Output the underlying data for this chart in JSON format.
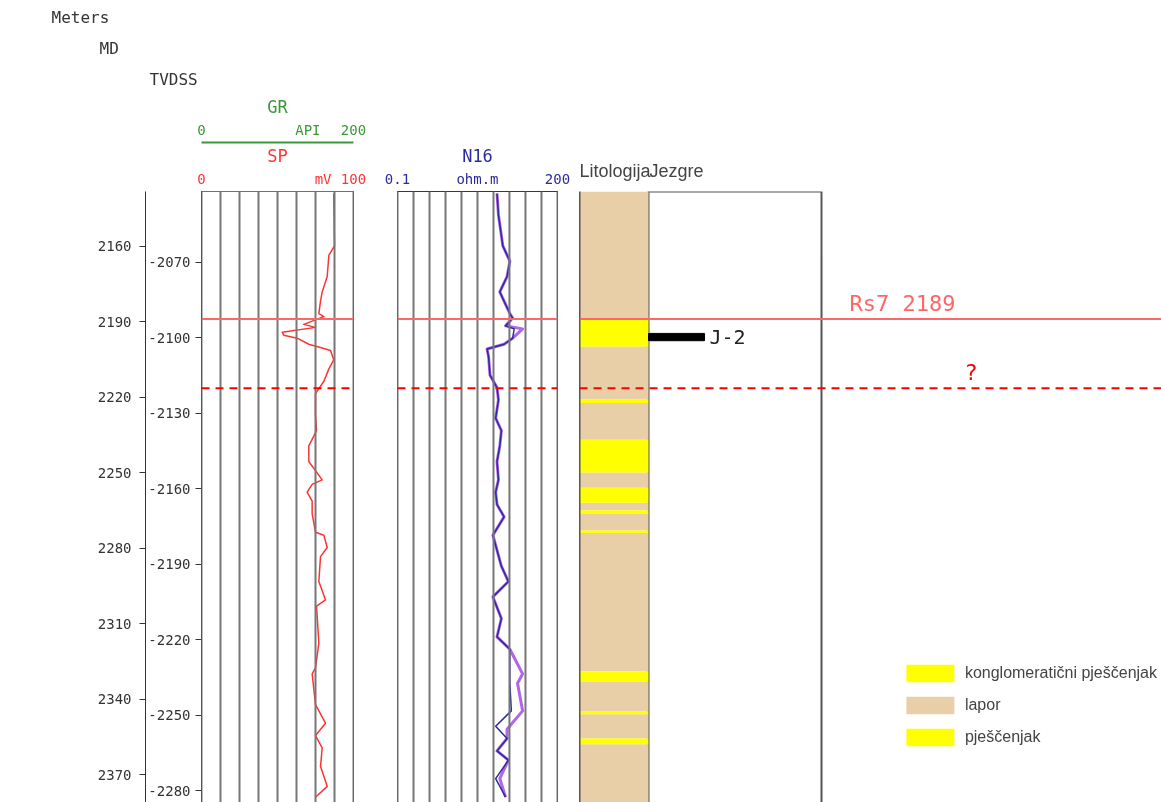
{
  "chart_data": [
    {
      "type": "line",
      "orientation": "horizontal",
      "xlabel": "SP",
      "xlim": [
        0,
        100
      ],
      "xticks": [
        0,
        {
          "value": 12.5,
          "label": null
        },
        {
          "value": 25,
          "label": null
        },
        {
          "value": 37.5,
          "label": null
        },
        {
          "value": 50,
          "label": null
        },
        {
          "value": 62.5,
          "label": null
        },
        {
          "value": 75,
          "label": null
        },
        {
          "value": 80,
          "label": "mV"
        },
        {
          "value": 87.5,
          "label": null
        },
        100
      ],
      "x2label": "GR",
      "x2lim": [
        0,
        200
      ],
      "x2ticks": [
        0,
        {
          "value": 140,
          "label": "API"
        },
        200
      ],
      "ylabel": "MD",
      "ylim": [
        2383.5,
        2138.3
      ],
      "yticks": [
        2160,
        2190,
        2220,
        2250,
        2280,
        2310,
        2340,
        2370
      ],
      "y2label": "TVDSS",
      "y2lim": [
        -2287.0,
        -2041.8
      ],
      "y2ticks": [
        -2070,
        -2100,
        -2130,
        -2160,
        -2190,
        -2220,
        -2250,
        -2280
      ],
      "annotations": [
        "Meters"
      ],
      "grid": "x",
      "ref_lines": [
        {
          "axis": "y",
          "value": 2189,
          "label": null,
          "color": "#ff6666",
          "line_style": "solid"
        },
        {
          "axis": "y",
          "value": 2216.5,
          "label": null,
          "color": "#ff0000",
          "line_style": "dashed"
        }
      ],
      "series": [
        {
          "color": "#ff3333",
          "x": [
            2139.1,
            2159.9,
            2163.6,
            2172.1,
            2178.2,
            2181.9,
            2186.8,
            2188.0,
            2189.3,
            2191.1,
            2192.3,
            2194.2,
            2195.4,
            2196.6,
            2199.0,
            2200.3,
            2201.5,
            2205.2,
            2208.8,
            2213.7,
            2218.6,
            2227.2,
            2233.3,
            2239.4,
            2245.6,
            2252.9,
            2254.7,
            2257.8,
            2261.3,
            2266.4,
            2273.7,
            2274.9,
            2279.8,
            2283.4,
            2293.3,
            2300.6,
            2303.1,
            2317.8,
            2327.6,
            2330.0,
            2342.2,
            2349.6,
            2354.5,
            2359.4,
            2366.7,
            2374.7,
            2379.0
          ],
          "values": [
            87.0,
            87.5,
            83.8,
            82.7,
            79.4,
            78.3,
            77.2,
            80.5,
            75.0,
            67.3,
            75.0,
            53.1,
            54.1,
            63.0,
            70.6,
            78.3,
            84.9,
            87.0,
            83.8,
            80.5,
            75.0,
            75.0,
            75.7,
            70.6,
            70.6,
            79.4,
            72.8,
            69.5,
            72.8,
            72.8,
            75.0,
            80.5,
            82.7,
            78.3,
            77.2,
            81.6,
            75.7,
            77.2,
            75.0,
            72.8,
            75.0,
            81.6,
            75.0,
            79.4,
            78.3,
            82.7,
            75.0
          ]
        }
      ]
    },
    {
      "type": "line",
      "orientation": "horizontal",
      "xlabel": "N16",
      "log": "x",
      "xlim": [
        0.1,
        200
      ],
      "xticks": [
        0.1,
        {
          "value": 0.214,
          "label": null
        },
        {
          "value": 0.458,
          "label": null
        },
        {
          "value": 0.978,
          "label": null
        },
        {
          "value": 2.09,
          "label": null
        },
        {
          "value": 4.47,
          "label": "ohm.m"
        },
        {
          "value": 9.56,
          "label": null
        },
        {
          "value": 20.4,
          "label": null
        },
        {
          "value": 43.7,
          "label": null
        },
        {
          "value": 93.5,
          "label": null
        },
        200
      ],
      "ylim": [
        2383.5,
        2138.3
      ],
      "tick_labels": "x",
      "grid": "x",
      "ref_lines": [
        {
          "axis": "y",
          "value": 2189,
          "label": null,
          "color": "#ff6666",
          "line_style": "solid"
        },
        {
          "axis": "y",
          "value": 2216.5,
          "label": null,
          "color": "#ff0000",
          "line_style": "dashed"
        }
      ],
      "series": [
        {
          "color": "#b266e6",
          "x": [
            2139.1,
            2147.6,
            2159.9,
            2166.0,
            2172.1,
            2178.2,
            2181.9,
            2186.8,
            2188.6,
            2191.7,
            2192.9,
            2196.6,
            2199.0,
            2200.9,
            2204.0,
            2211.3,
            2216.2,
            2221.1,
            2228.4,
            2233.3,
            2239.4,
            2245.6,
            2252.9,
            2257.8,
            2262.7,
            2267.6,
            2274.9,
            2287.2,
            2293.3,
            2299.4,
            2308.0,
            2315.3,
            2320.2,
            2330.0,
            2333.7,
            2344.7,
            2352.0,
            2355.7,
            2360.6,
            2364.3,
            2371.6,
            2379.0
          ],
          "values": [
            11.3,
            12.1,
            14.9,
            20.8,
            18.2,
            12.9,
            15.8,
            20.8,
            23.8,
            17.0,
            38.1,
            23.8,
            15.8,
            7.06,
            7.57,
            8.1,
            11.3,
            12.1,
            10.6,
            13.9,
            12.9,
            11.3,
            12.1,
            10.6,
            11.3,
            15.8,
            9.3,
            13.9,
            19.4,
            9.3,
            13.9,
            11.3,
            20.8,
            38.1,
            30.0,
            38.1,
            18.2,
            18.2,
            11.3,
            19.4,
            12.9,
            17.0
          ]
        },
        {
          "color": "#2b2b9e",
          "x": [
            2139.1,
            2147.6,
            2159.9,
            2166.0,
            2172.1,
            2178.2,
            2181.9,
            2186.8,
            2188.6,
            2191.7,
            2192.9,
            2196.6,
            2199.0,
            2200.9,
            2204.0,
            2211.3,
            2216.2,
            2221.1,
            2228.4,
            2233.3,
            2239.4,
            2245.6,
            2252.9,
            2257.8,
            2262.7,
            2267.6,
            2274.9,
            2287.2,
            2293.3,
            2299.4,
            2308.0,
            2315.3,
            2320.2,
            2333.7,
            2344.7,
            2350.8,
            2355.7,
            2360.6,
            2364.3,
            2371.6,
            2379.0
          ],
          "values": [
            11.3,
            12.1,
            14.9,
            20.8,
            18.2,
            12.9,
            15.8,
            20.8,
            23.8,
            17.0,
            25.5,
            23.8,
            15.8,
            7.06,
            7.57,
            8.1,
            11.3,
            12.1,
            10.6,
            13.9,
            12.9,
            11.3,
            12.1,
            10.6,
            11.3,
            15.8,
            9.3,
            13.9,
            19.4,
            9.3,
            13.9,
            11.3,
            20.8,
            20.8,
            22.3,
            10.6,
            18.2,
            11.3,
            19.4,
            10.6,
            17.0
          ]
        }
      ]
    },
    {
      "type": "bar",
      "categories": [
        "Litologija",
        "Jezgre"
      ],
      "ylim": [
        2383.5,
        2138.3
      ],
      "tick_labels": "x",
      "legend": "bottom right",
      "ref_lines": [
        {
          "axis": "y",
          "value": 2189,
          "label": "Rs7 2189",
          "color": "#ff6666",
          "line_style": "solid"
        },
        {
          "axis": "y",
          "value": 2216.5,
          "label": "?",
          "color": "#ff0000",
          "line_style": "dashed"
        }
      ],
      "series": [
        {
          "name": "konglomeratični pješčenjak",
          "color": "#ffff00",
          "base": [
            2189,
            null
          ],
          "values": [
            11,
            null
          ]
        },
        {
          "name": "lapor",
          "color": "#e8cfa8",
          "base": [
            2138.3,
            null
          ],
          "values": [
            50.7,
            null
          ]
        },
        {
          "color": "#e8cfa8",
          "base": [
            2200,
            null
          ],
          "values": [
            21,
            null
          ]
        },
        {
          "color": "#e8cfa8",
          "base": [
            2222.4,
            null
          ],
          "values": [
            14.6,
            null
          ]
        },
        {
          "color": "#e8cfa8",
          "base": [
            2250,
            null
          ],
          "values": [
            6,
            null
          ]
        },
        {
          "color": "#e8cfa8",
          "base": [
            2262,
            null
          ],
          "values": [
            3,
            null
          ]
        },
        {
          "color": "#e8cfa8",
          "base": [
            2266.5,
            null
          ],
          "values": [
            6.5,
            null
          ]
        },
        {
          "color": "#e8cfa8",
          "base": [
            2274,
            null
          ],
          "values": [
            55,
            null
          ]
        },
        {
          "color": "#e8cfa8",
          "base": [
            2333,
            null
          ],
          "values": [
            12,
            null
          ]
        },
        {
          "color": "#e8cfa8",
          "base": [
            2346,
            null
          ],
          "values": [
            9.7,
            null
          ]
        },
        {
          "color": "#e8cfa8",
          "base": [
            2358,
            null
          ],
          "values": [
            24.2,
            null
          ]
        },
        {
          "name": "pješčenjak",
          "color": "#ffff00",
          "base": [
            2237,
            null
          ],
          "values": [
            13,
            null
          ]
        },
        {
          "color": "#ffff00",
          "base": [
            2221,
            null
          ],
          "values": [
            1.4,
            null
          ]
        },
        {
          "color": "#ffff00",
          "base": [
            2256,
            null
          ],
          "values": [
            6,
            null
          ]
        },
        {
          "color": "#ffff00",
          "base": [
            2265,
            null
          ],
          "values": [
            1.5,
            null
          ]
        },
        {
          "color": "#ffff00",
          "base": [
            2273,
            null
          ],
          "values": [
            1,
            null
          ]
        },
        {
          "color": "#ffff00",
          "base": [
            2329,
            null
          ],
          "values": [
            4,
            null
          ]
        },
        {
          "color": "#ffff00",
          "base": [
            2345,
            null
          ],
          "values": [
            1,
            null
          ]
        },
        {
          "color": "#ffff00",
          "base": [
            2355.7,
            null
          ],
          "values": [
            2.3,
            null
          ]
        },
        {
          "name": "J-2",
          "color": "#000000",
          "base": [
            null,
            2194.7
          ],
          "values": [
            null,
            2.9
          ]
        }
      ]
    }
  ]
}
